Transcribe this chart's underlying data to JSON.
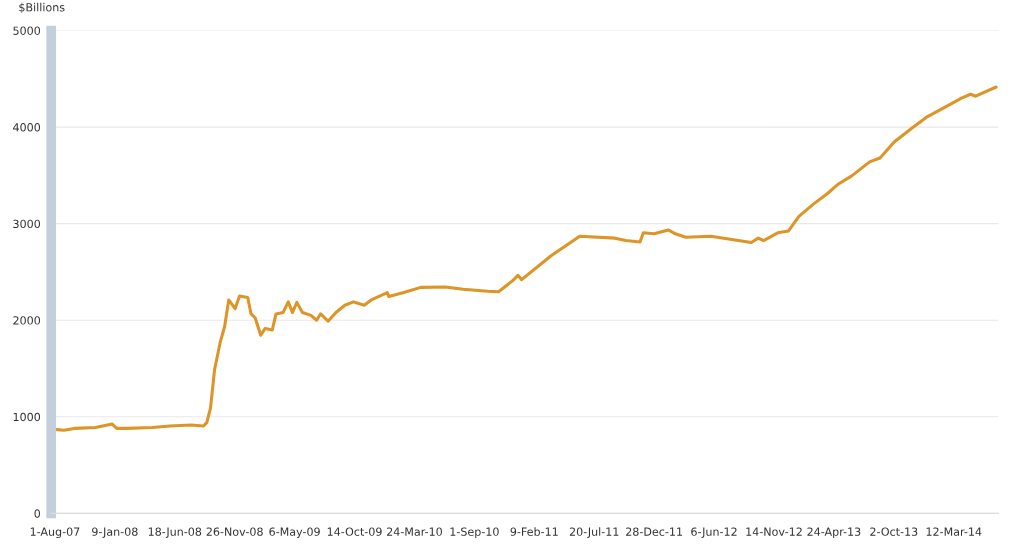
{
  "chart_data": {
    "type": "line",
    "ylabel": "$Billions",
    "x": [
      "2007-08-01",
      "2007-08-25",
      "2007-09-22",
      "2007-11-18",
      "2008-01-02",
      "2008-01-14",
      "2008-02-12",
      "2008-04-18",
      "2008-06-05",
      "2008-08-01",
      "2008-09-03",
      "2008-09-12",
      "2008-09-22",
      "2008-10-03",
      "2008-10-18",
      "2008-10-30",
      "2008-11-10",
      "2008-11-27",
      "2008-12-09",
      "2008-12-31",
      "2009-01-09",
      "2009-01-20",
      "2009-02-04",
      "2009-02-16",
      "2009-03-07",
      "2009-03-17",
      "2009-04-05",
      "2009-04-19",
      "2009-04-30",
      "2009-05-12",
      "2009-05-27",
      "2009-06-19",
      "2009-07-04",
      "2009-07-15",
      "2009-08-04",
      "2009-08-25",
      "2009-09-18",
      "2009-10-11",
      "2009-11-09",
      "2009-11-28",
      "2010-01-10",
      "2010-01-14",
      "2010-02-21",
      "2010-04-10",
      "2010-06-15",
      "2010-08-02",
      "2010-10-07",
      "2010-11-05",
      "2010-12-13",
      "2010-12-27",
      "2011-01-06",
      "2011-03-27",
      "2011-06-11",
      "2011-09-14",
      "2011-10-13",
      "2011-11-20",
      "2011-11-29",
      "2011-12-28",
      "2012-02-04",
      "2012-02-23",
      "2012-03-22",
      "2012-05-28",
      "2012-07-24",
      "2012-09-14",
      "2012-10-03",
      "2012-10-17",
      "2012-11-24",
      "2012-12-23",
      "2013-01-20",
      "2013-02-27",
      "2013-04-06",
      "2013-05-04",
      "2013-06-11",
      "2013-07-29",
      "2013-08-26",
      "2013-10-03",
      "2013-11-20",
      "2013-12-28",
      "2014-02-23",
      "2014-04-02",
      "2014-04-26",
      "2014-05-10",
      "2014-07-04"
    ],
    "series": [
      {
        "color": "#dd9528",
        "values": [
          870,
          860,
          880,
          890,
          925,
          880,
          880,
          890,
          905,
          915,
          905,
          940,
          1090,
          1490,
          1770,
          1935,
          2210,
          2120,
          2250,
          2235,
          2065,
          2025,
          1845,
          1915,
          1900,
          2065,
          2080,
          2190,
          2080,
          2185,
          2080,
          2050,
          2000,
          2065,
          1990,
          2080,
          2155,
          2190,
          2155,
          2210,
          2285,
          2245,
          2285,
          2340,
          2345,
          2320,
          2300,
          2295,
          2410,
          2465,
          2420,
          2670,
          2870,
          2850,
          2825,
          2810,
          2905,
          2895,
          2935,
          2895,
          2860,
          2870,
          2835,
          2805,
          2850,
          2825,
          2905,
          2925,
          3075,
          3200,
          3310,
          3405,
          3495,
          3640,
          3680,
          3845,
          3990,
          4100,
          4220,
          4300,
          4340,
          4320,
          4415
        ]
      }
    ],
    "xlim": [
      "2007-07-22",
      "2014-07-10"
    ],
    "xticks": [
      {
        "value": "2007-08-01",
        "label": "1-Aug-07"
      },
      {
        "value": "2008-01-09",
        "label": "9-Jan-08"
      },
      {
        "value": "2008-06-18",
        "label": "18-Jun-08"
      },
      {
        "value": "2008-11-26",
        "label": "26-Nov-08"
      },
      {
        "value": "2009-05-06",
        "label": "6-May-09"
      },
      {
        "value": "2009-10-14",
        "label": "14-Oct-09"
      },
      {
        "value": "2010-03-24",
        "label": "24-Mar-10"
      },
      {
        "value": "2010-09-01",
        "label": "1-Sep-10"
      },
      {
        "value": "2011-02-09",
        "label": "9-Feb-11"
      },
      {
        "value": "2011-07-20",
        "label": "20-Jul-11"
      },
      {
        "value": "2011-12-28",
        "label": "28-Dec-11"
      },
      {
        "value": "2012-06-06",
        "label": "6-Jun-12"
      },
      {
        "value": "2012-11-14",
        "label": "14-Nov-12"
      },
      {
        "value": "2013-04-24",
        "label": "24-Apr-13"
      },
      {
        "value": "2013-10-02",
        "label": "2-Oct-13"
      },
      {
        "value": "2014-03-12",
        "label": "12-Mar-14"
      }
    ],
    "ylim": [
      0,
      5000
    ],
    "yticks": [
      0,
      1000,
      2000,
      3000,
      4000,
      5000
    ],
    "grid": "y",
    "marker": "none",
    "line_style": "solid"
  }
}
